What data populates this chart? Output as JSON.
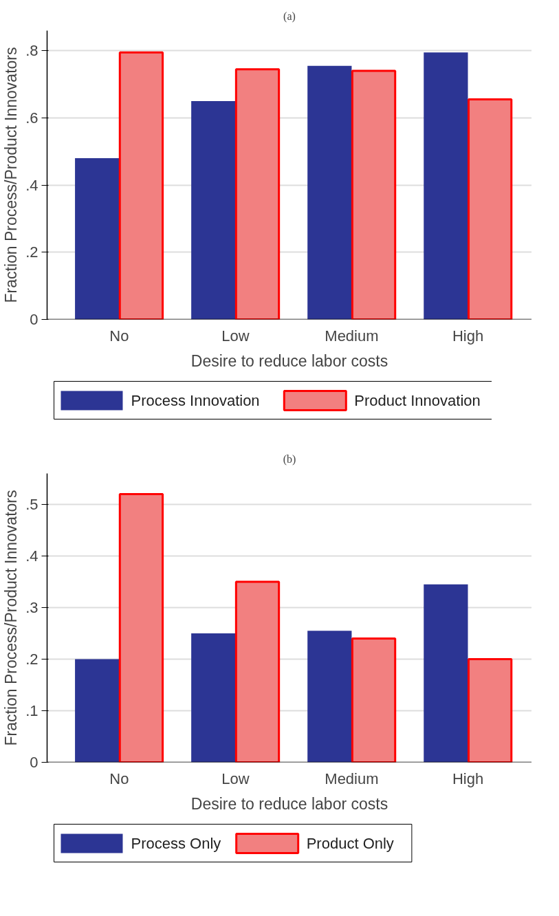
{
  "chart_data": [
    {
      "type": "bar",
      "title": "(a)",
      "xlabel": "Desire to reduce labor costs",
      "ylabel": "Fraction Process/Product Innovators",
      "categories": [
        "No",
        "Low",
        "Medium",
        "High"
      ],
      "series": [
        {
          "name": "Process Innovation",
          "color": "#2c3594",
          "values": [
            0.48,
            0.65,
            0.755,
            0.795
          ]
        },
        {
          "name": "Product Innovation",
          "color": "#f28080",
          "values": [
            0.795,
            0.745,
            0.74,
            0.655
          ]
        }
      ],
      "ylim": [
        0,
        0.86
      ],
      "yticks": [
        {
          "value": 0,
          "label": "0"
        },
        {
          "value": 0.2,
          "label": ".2"
        },
        {
          "value": 0.4,
          "label": ".4"
        },
        {
          "value": 0.6,
          "label": ".6"
        },
        {
          "value": 0.8,
          "label": ".8"
        }
      ],
      "grid": "y",
      "legend": "bottom"
    },
    {
      "type": "bar",
      "title": "(b)",
      "xlabel": "Desire to reduce labor costs",
      "ylabel": "Fraction Process/Product Innovators",
      "categories": [
        "No",
        "Low",
        "Medium",
        "High"
      ],
      "series": [
        {
          "name": "Process Only",
          "color": "#2c3594",
          "values": [
            0.2,
            0.25,
            0.255,
            0.345
          ]
        },
        {
          "name": "Product Only",
          "color": "#f28080",
          "values": [
            0.52,
            0.35,
            0.24,
            0.2
          ]
        }
      ],
      "ylim": [
        0,
        0.56
      ],
      "yticks": [
        {
          "value": 0,
          "label": "0"
        },
        {
          "value": 0.1,
          "label": ".1"
        },
        {
          "value": 0.2,
          "label": ".2"
        },
        {
          "value": 0.3,
          "label": ".3"
        },
        {
          "value": 0.4,
          "label": ".4"
        },
        {
          "value": 0.5,
          "label": ".5"
        }
      ],
      "grid": "y",
      "legend": "bottom"
    }
  ]
}
